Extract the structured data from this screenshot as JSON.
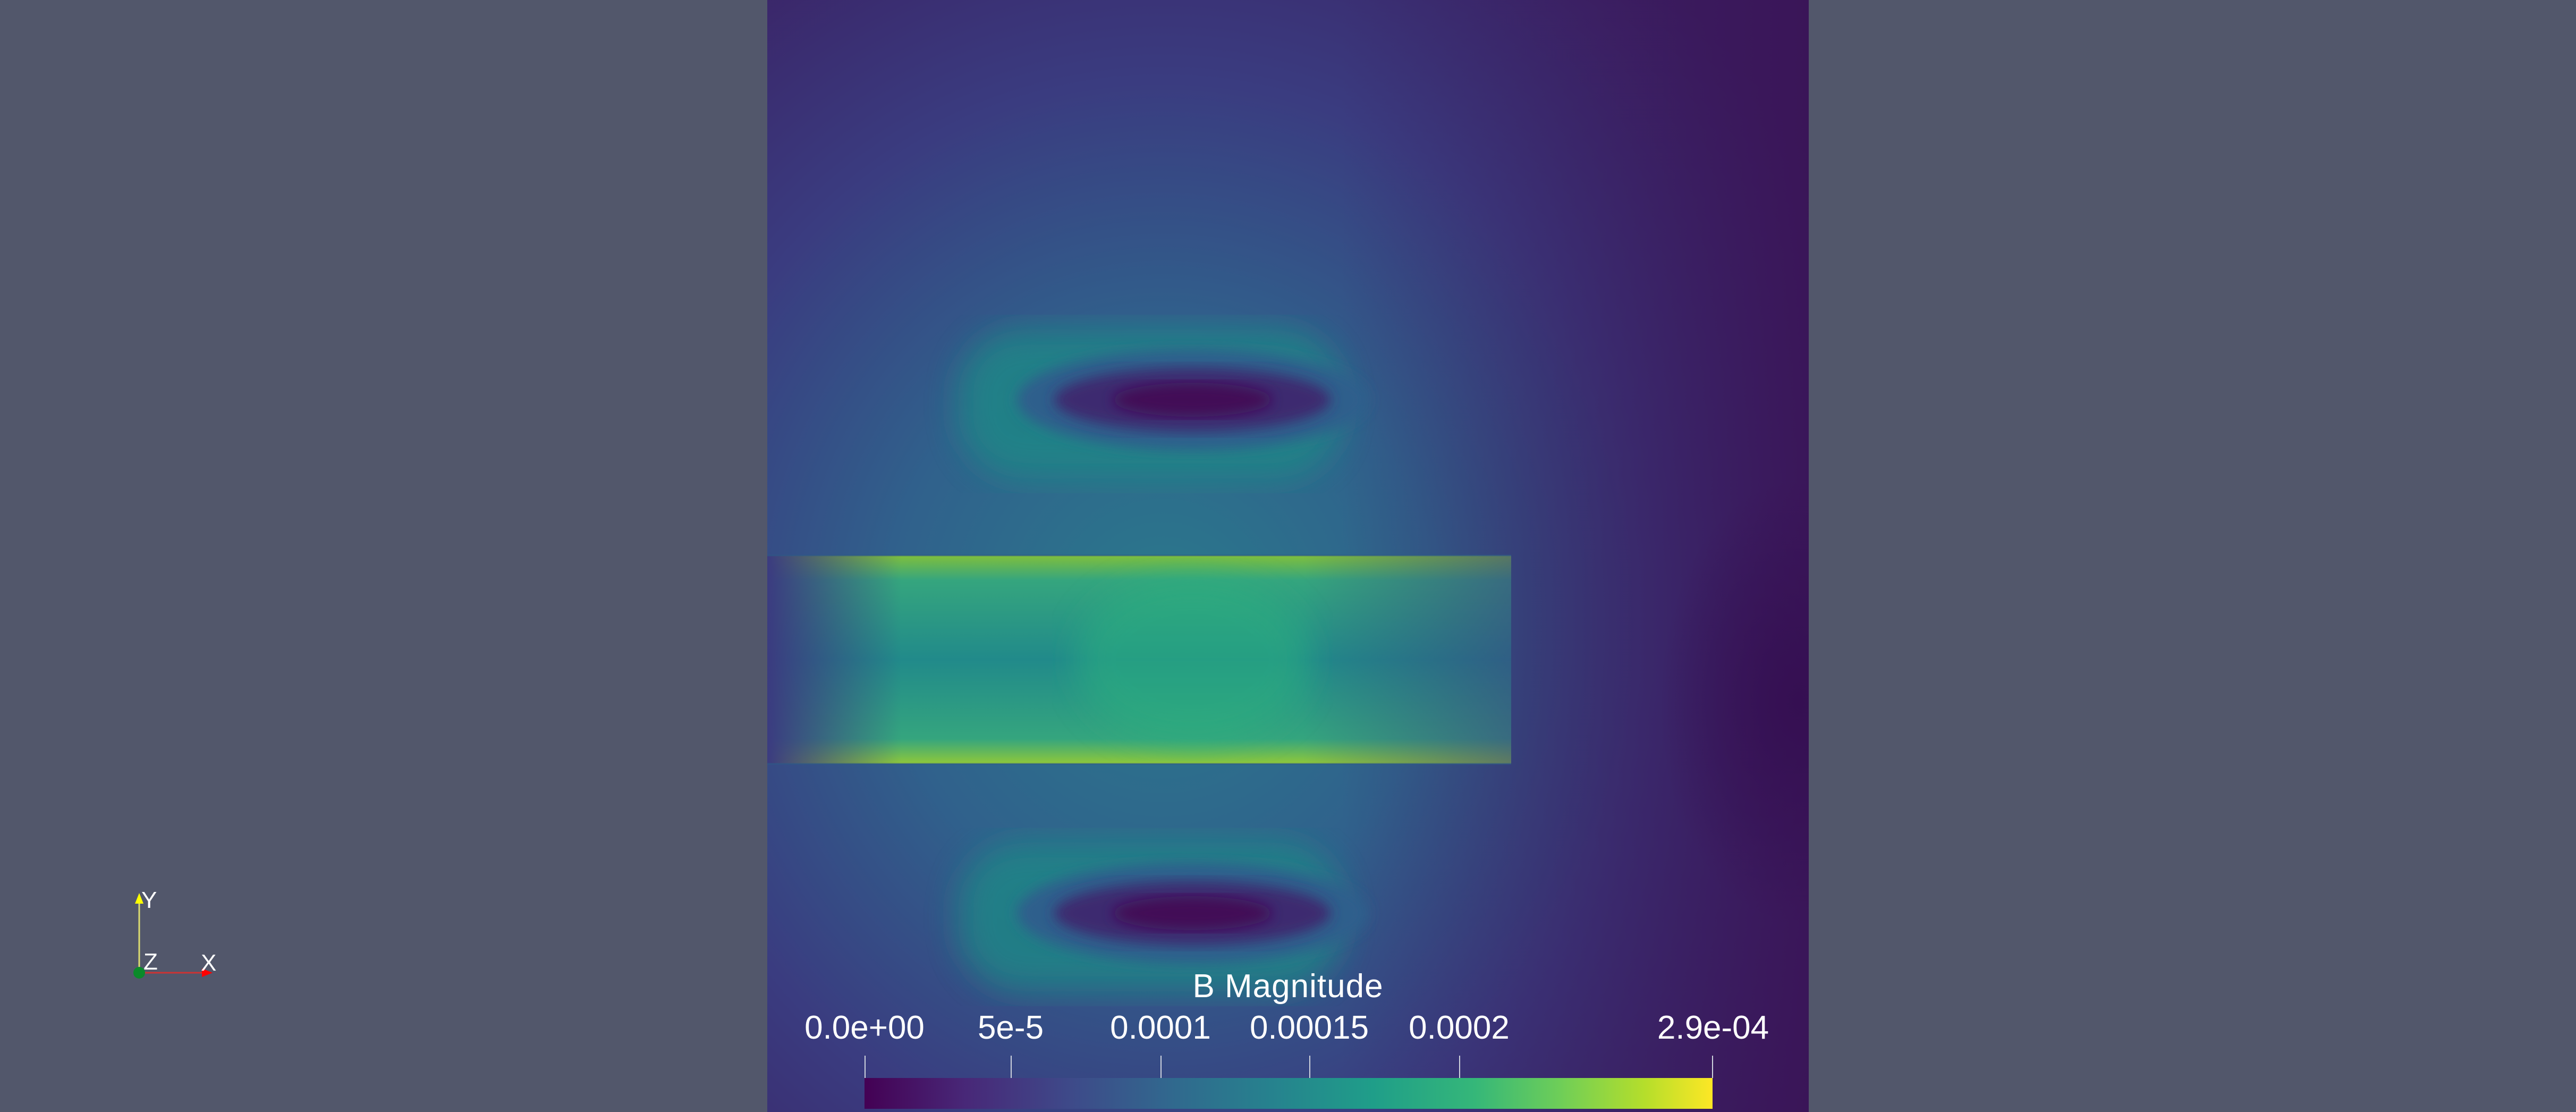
{
  "colorbar": {
    "title": "B Magnitude",
    "range": [
      0,
      0.00029
    ],
    "ticks": [
      {
        "label": "0.0e+00",
        "value": 0
      },
      {
        "label": "5e-5",
        "value": 5e-05
      },
      {
        "label": "0.0001",
        "value": 0.0001
      },
      {
        "label": "0.00015",
        "value": 0.00015
      },
      {
        "label": "0.0002",
        "value": 0.0002
      },
      {
        "label": "2.9e-04",
        "value": 0.00029
      }
    ],
    "colormap": "viridis"
  },
  "axes": {
    "y_label": "Y",
    "z_label": "Z",
    "x_label": "X",
    "y_color": "#ffff00",
    "z_color": "#00aa00",
    "x_color": "#ff0000"
  },
  "colors": {
    "background": "#52576b"
  }
}
